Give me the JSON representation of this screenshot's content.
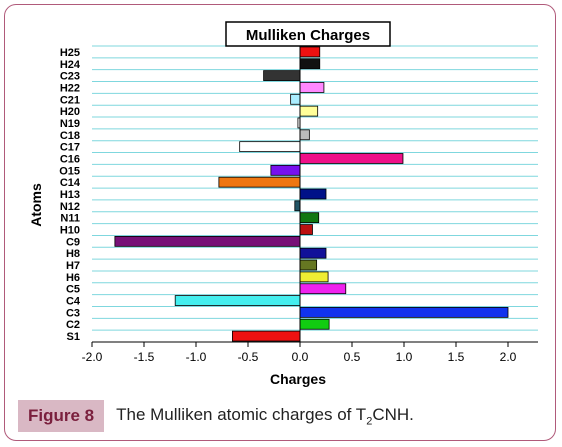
{
  "chart_data": {
    "type": "bar",
    "orientation": "horizontal",
    "title": "Mulliken Charges",
    "xlabel": "Charges",
    "ylabel": "Atoms",
    "xlim": [
      -2.0,
      2.0
    ],
    "xticks": [
      "-2.0",
      "-1.5",
      "-1.0",
      "-0.5",
      "0.0",
      "0.5",
      "1.0",
      "1.5",
      "2.0"
    ],
    "categories": [
      "S1",
      "C2",
      "C3",
      "C4",
      "C5",
      "H6",
      "H7",
      "H8",
      "C9",
      "H10",
      "N11",
      "N12",
      "H13",
      "C14",
      "O15",
      "C16",
      "C17",
      "C18",
      "N19",
      "H20",
      "C21",
      "H22",
      "C23",
      "H24",
      "H25"
    ],
    "values": [
      -0.65,
      0.28,
      2.0,
      -1.2,
      0.44,
      0.27,
      0.16,
      0.25,
      -1.78,
      0.12,
      0.18,
      -0.05,
      0.25,
      -0.78,
      -0.28,
      0.99,
      -0.58,
      0.09,
      -0.02,
      0.17,
      -0.09,
      0.23,
      -0.35,
      0.19,
      0.19
    ],
    "colors": [
      "#ee1111",
      "#11cc11",
      "#1133ee",
      "#44eeee",
      "#ee22ee",
      "#eeee33",
      "#667722",
      "#111199",
      "#771177",
      "#bb1111",
      "#117711",
      "#225566",
      "#001188",
      "#ee7711",
      "#7711ee",
      "#ee1188",
      "#ffffff",
      "#bbbbbb",
      "#ffffff",
      "#ffff99",
      "#aaeeff",
      "#ff88ff",
      "#333333",
      "#111111",
      "#ee1111"
    ],
    "grid": true
  },
  "caption": {
    "label": "Figure 8",
    "text_before": "The Mulliken atomic charges of T",
    "subscript": "2",
    "text_after": "CNH."
  }
}
